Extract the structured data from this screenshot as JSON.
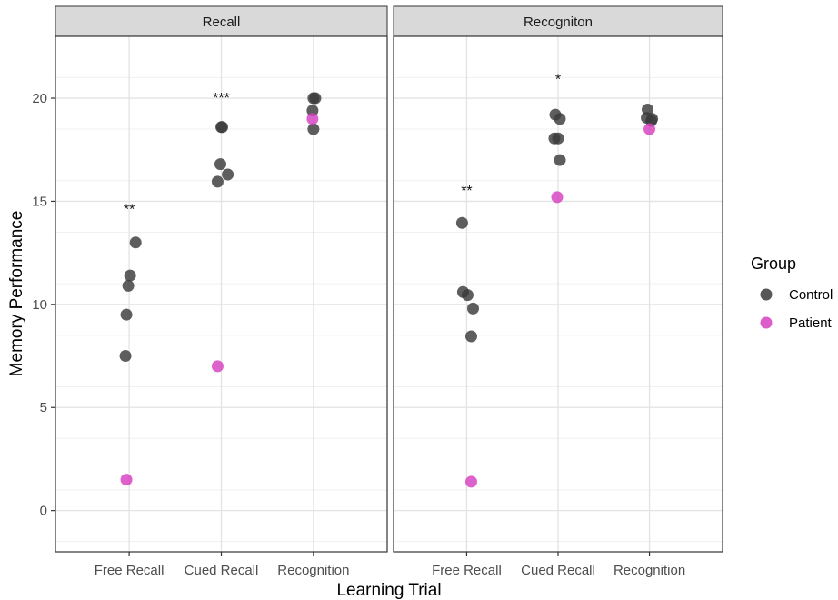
{
  "chart_data": {
    "type": "scatter",
    "xlabel": "Learning Trial",
    "ylabel": "Memory Performance",
    "categories": [
      "Free Recall",
      "Cued Recall",
      "Recognition"
    ],
    "ylim": [
      -2,
      23
    ],
    "yticks": [
      0,
      5,
      10,
      15,
      20
    ],
    "grid": true,
    "legend": {
      "title": "Group",
      "position": "right",
      "entries": [
        {
          "name": "Control",
          "color": "#3a3a3a"
        },
        {
          "name": "Patient",
          "color": "#d63fc0"
        }
      ]
    },
    "panels": [
      {
        "title": "Recall",
        "annotations": [
          {
            "category": "Free Recall",
            "y": 14.6,
            "text": "**"
          },
          {
            "category": "Cued Recall",
            "y": 20.0,
            "text": "***"
          }
        ],
        "series": [
          {
            "name": "Control",
            "points": [
              {
                "x": "Free Recall",
                "y": 13.0,
                "jitter": 0.07
              },
              {
                "x": "Free Recall",
                "y": 11.4,
                "jitter": 0.01
              },
              {
                "x": "Free Recall",
                "y": 10.9,
                "jitter": -0.01
              },
              {
                "x": "Free Recall",
                "y": 9.5,
                "jitter": -0.03
              },
              {
                "x": "Free Recall",
                "y": 7.5,
                "jitter": -0.04
              },
              {
                "x": "Cued Recall",
                "y": 18.6,
                "jitter": 0.0
              },
              {
                "x": "Cued Recall",
                "y": 18.6,
                "jitter": 0.01
              },
              {
                "x": "Cued Recall",
                "y": 16.8,
                "jitter": -0.01
              },
              {
                "x": "Cued Recall",
                "y": 16.3,
                "jitter": 0.07
              },
              {
                "x": "Cued Recall",
                "y": 15.95,
                "jitter": -0.04
              },
              {
                "x": "Recognition",
                "y": 20.0,
                "jitter": 0.0
              },
              {
                "x": "Recognition",
                "y": 20.0,
                "jitter": 0.02
              },
              {
                "x": "Recognition",
                "y": 19.4,
                "jitter": -0.01
              },
              {
                "x": "Recognition",
                "y": 18.5,
                "jitter": 0.0
              }
            ]
          },
          {
            "name": "Patient",
            "points": [
              {
                "x": "Free Recall",
                "y": 1.5,
                "jitter": -0.03
              },
              {
                "x": "Cued Recall",
                "y": 7.0,
                "jitter": -0.04
              },
              {
                "x": "Recognition",
                "y": 19.0,
                "jitter": -0.01
              }
            ]
          }
        ]
      },
      {
        "title": "Recogniton",
        "annotations": [
          {
            "category": "Free Recall",
            "y": 15.5,
            "text": "**"
          },
          {
            "category": "Cued Recall",
            "y": 20.9,
            "text": "*"
          }
        ],
        "series": [
          {
            "name": "Control",
            "points": [
              {
                "x": "Free Recall",
                "y": 13.95,
                "jitter": -0.05
              },
              {
                "x": "Free Recall",
                "y": 10.6,
                "jitter": -0.04
              },
              {
                "x": "Free Recall",
                "y": 10.45,
                "jitter": 0.01
              },
              {
                "x": "Free Recall",
                "y": 9.8,
                "jitter": 0.07
              },
              {
                "x": "Free Recall",
                "y": 8.45,
                "jitter": 0.05
              },
              {
                "x": "Cued Recall",
                "y": 19.2,
                "jitter": -0.03
              },
              {
                "x": "Cued Recall",
                "y": 19.0,
                "jitter": 0.02
              },
              {
                "x": "Cued Recall",
                "y": 18.05,
                "jitter": -0.04
              },
              {
                "x": "Cued Recall",
                "y": 18.05,
                "jitter": 0.0
              },
              {
                "x": "Cued Recall",
                "y": 17.0,
                "jitter": 0.02
              },
              {
                "x": "Recognition",
                "y": 19.45,
                "jitter": -0.02
              },
              {
                "x": "Recognition",
                "y": 19.05,
                "jitter": -0.03
              },
              {
                "x": "Recognition",
                "y": 19.0,
                "jitter": 0.03
              },
              {
                "x": "Recognition",
                "y": 18.9,
                "jitter": 0.02
              }
            ]
          },
          {
            "name": "Patient",
            "points": [
              {
                "x": "Free Recall",
                "y": 1.4,
                "jitter": 0.05
              },
              {
                "x": "Cued Recall",
                "y": 15.2,
                "jitter": -0.01
              },
              {
                "x": "Recognition",
                "y": 18.5,
                "jitter": 0.0
              }
            ]
          }
        ]
      }
    ]
  }
}
